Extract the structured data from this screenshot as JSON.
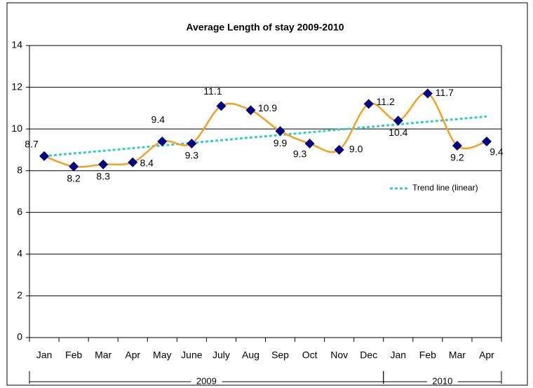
{
  "chart_data": {
    "type": "line",
    "title": "Average Length of stay 2009-2010",
    "categories": [
      "Jan",
      "Feb",
      "Mar",
      "Apr",
      "May",
      "June",
      "July",
      "Aug",
      "Sep",
      "Oct",
      "Nov",
      "Dec",
      "Jan",
      "Feb",
      "Mar",
      "Apr"
    ],
    "x_groups": [
      {
        "label": "2009",
        "span": 12
      },
      {
        "label": "2010",
        "span": 4
      }
    ],
    "series": [
      {
        "color": "#f5a021",
        "marker_color": "#000080",
        "values": [
          8.7,
          8.2,
          8.3,
          8.4,
          9.4,
          9.3,
          11.1,
          10.9,
          9.9,
          9.3,
          9.0,
          11.2,
          10.4,
          11.7,
          9.2,
          9.4
        ],
        "value_labels": [
          "8.7",
          "8.2",
          "8.3",
          "8.4",
          "9.4",
          "9.3",
          "11.1",
          "10.9",
          "9.9",
          "9.3",
          "9.0",
          "11.2",
          "10.4",
          "11.7",
          "9.2",
          "9.4"
        ]
      },
      {
        "name": "Trend line (linear)",
        "color": "#33cccc",
        "dashed": true,
        "values": [
          8.7,
          8.83,
          8.95,
          9.08,
          9.21,
          9.33,
          9.46,
          9.59,
          9.71,
          9.84,
          9.97,
          10.09,
          10.22,
          10.35,
          10.47,
          10.6
        ]
      }
    ],
    "ylim": [
      0,
      14
    ],
    "yticks": [
      0,
      2,
      4,
      6,
      8,
      10,
      12,
      14
    ],
    "grid": true
  }
}
